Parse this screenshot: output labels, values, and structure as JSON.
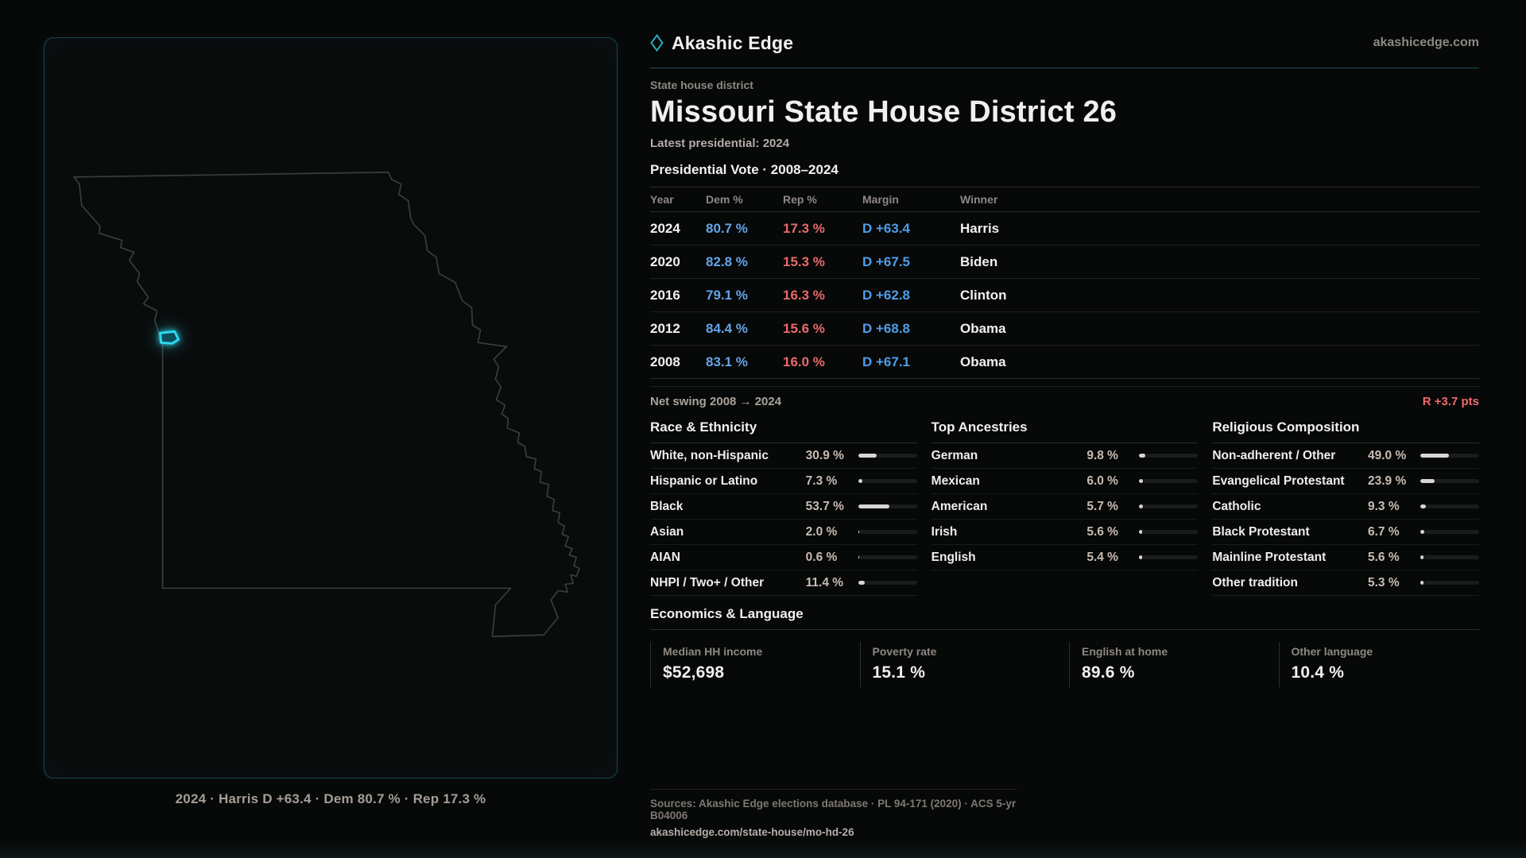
{
  "brand": {
    "name": "Akashic Edge",
    "domain": "akashicedge.com"
  },
  "page": {
    "eyebrow": "State house district",
    "title": "Missouri State House District 26",
    "latest_note": "Latest presidential: 2024"
  },
  "vote_table": {
    "title": "Presidential Vote · 2008–2024",
    "columns": {
      "year": "Year",
      "dem": "Dem %",
      "rep": "Rep %",
      "margin": "Margin",
      "winner": "Winner"
    },
    "rows": [
      {
        "year": "2024",
        "dem": "80.7 %",
        "rep": "17.3 %",
        "margin": "D +63.4",
        "winner": "Harris"
      },
      {
        "year": "2020",
        "dem": "82.8 %",
        "rep": "15.3 %",
        "margin": "D +67.5",
        "winner": "Biden"
      },
      {
        "year": "2016",
        "dem": "79.1 %",
        "rep": "16.3 %",
        "margin": "D +62.8",
        "winner": "Clinton"
      },
      {
        "year": "2012",
        "dem": "84.4 %",
        "rep": "15.6 %",
        "margin": "D +68.8",
        "winner": "Obama"
      },
      {
        "year": "2008",
        "dem": "83.1 %",
        "rep": "16.0 %",
        "margin": "D +67.1",
        "winner": "Obama"
      }
    ],
    "net_swing_label": "Net swing 2008 → 2024",
    "net_swing_value": "R +3.7 pts"
  },
  "demographics": {
    "race": {
      "title": "Race & Ethnicity",
      "rows": [
        {
          "label": "White, non-Hispanic",
          "value": "30.9 %",
          "pct": 30.9
        },
        {
          "label": "Hispanic or Latino",
          "value": "7.3 %",
          "pct": 7.3
        },
        {
          "label": "Black",
          "value": "53.7 %",
          "pct": 53.7
        },
        {
          "label": "Asian",
          "value": "2.0 %",
          "pct": 2.0
        },
        {
          "label": "AIAN",
          "value": "0.6 %",
          "pct": 0.6
        },
        {
          "label": "NHPI / Two+ / Other",
          "value": "11.4 %",
          "pct": 11.4
        }
      ]
    },
    "ancestries": {
      "title": "Top Ancestries",
      "rows": [
        {
          "label": "German",
          "value": "9.8 %",
          "pct": 9.8
        },
        {
          "label": "Mexican",
          "value": "6.0 %",
          "pct": 6.0
        },
        {
          "label": "American",
          "value": "5.7 %",
          "pct": 5.7
        },
        {
          "label": "Irish",
          "value": "5.6 %",
          "pct": 5.6
        },
        {
          "label": "English",
          "value": "5.4 %",
          "pct": 5.4
        }
      ]
    },
    "religion": {
      "title": "Religious Composition",
      "rows": [
        {
          "label": "Non-adherent / Other",
          "value": "49.0 %",
          "pct": 49.0
        },
        {
          "label": "Evangelical Protestant",
          "value": "23.9 %",
          "pct": 23.9
        },
        {
          "label": "Catholic",
          "value": "9.3 %",
          "pct": 9.3
        },
        {
          "label": "Black Protestant",
          "value": "6.7 %",
          "pct": 6.7
        },
        {
          "label": "Mainline Protestant",
          "value": "5.6 %",
          "pct": 5.6
        },
        {
          "label": "Other tradition",
          "value": "5.3 %",
          "pct": 5.3
        }
      ]
    }
  },
  "economics": {
    "title": "Economics & Language",
    "stats": [
      {
        "label": "Median HH income",
        "value": "$52,698"
      },
      {
        "label": "Poverty rate",
        "value": "15.1 %"
      },
      {
        "label": "English at home",
        "value": "89.6 %"
      },
      {
        "label": "Other language",
        "value": "10.4 %"
      }
    ]
  },
  "map": {
    "caption": "2024 · Harris D +63.4 · Dem 80.7 % · Rep 17.3 %"
  },
  "footer": {
    "sources": "Sources: Akashic Edge elections database · PL 94-171 (2020) · ACS 5-yr B04006",
    "link": "akashicedge.com/state-house/mo-hd-26"
  },
  "colors": {
    "accent_teal": "#2fa8bc",
    "dem_blue": "#64a4e8",
    "rep_red": "#e86a6a",
    "district_cyan": "#2fd8ee"
  }
}
